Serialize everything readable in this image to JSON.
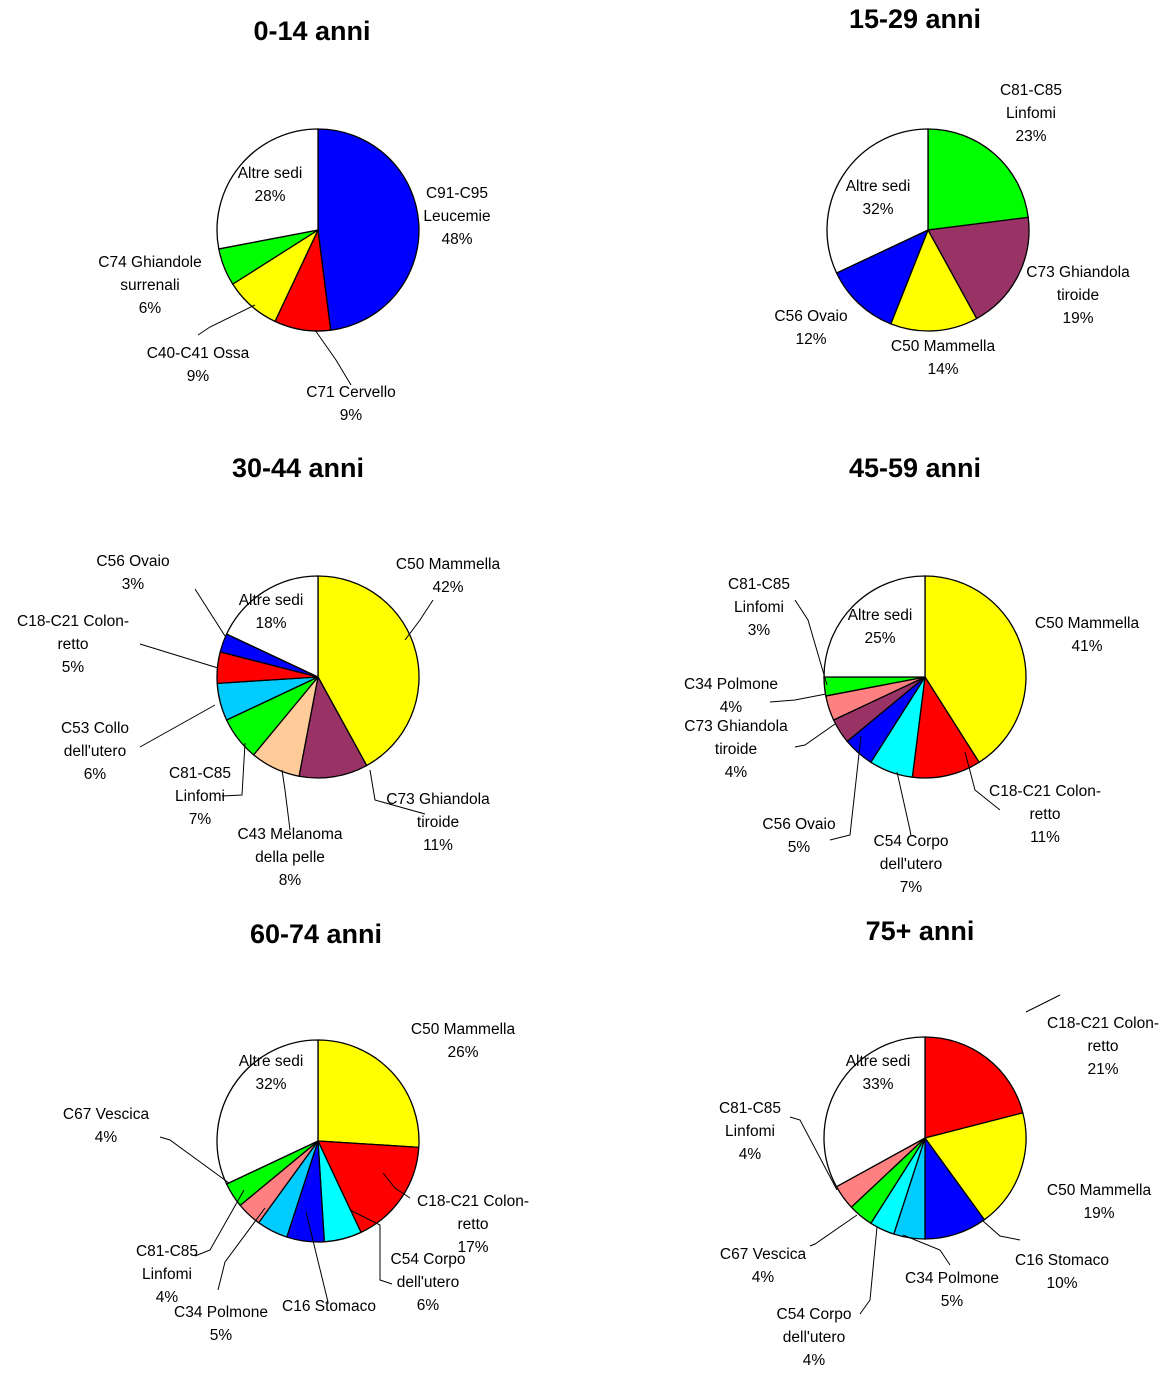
{
  "chart_data": [
    {
      "type": "pie",
      "title": "0-14 anni",
      "slices": [
        {
          "label": [
            "C91-C95",
            "Leucemie"
          ],
          "value": 48,
          "pct": "48%",
          "color": "#0000ff"
        },
        {
          "label": [
            "C71 Cervello"
          ],
          "value": 9,
          "pct": "9%",
          "color": "#ff0000"
        },
        {
          "label": [
            "C40-C41 Ossa"
          ],
          "value": 9,
          "pct": "9%",
          "color": "#ffff00"
        },
        {
          "label": [
            "C74  Ghiandole",
            "surrenali"
          ],
          "value": 6,
          "pct": "6%",
          "color": "#00ff00"
        },
        {
          "label": [
            "Altre sedi"
          ],
          "value": 28,
          "pct": "28%",
          "color": "#ffffff"
        }
      ]
    },
    {
      "type": "pie",
      "title": "15-29 anni",
      "slices": [
        {
          "label": [
            "C81-C85",
            "Linfomi"
          ],
          "value": 23,
          "pct": "23%",
          "color": "#00ff00"
        },
        {
          "label": [
            "C73 Ghiandola",
            "tiroide"
          ],
          "value": 19,
          "pct": "19%",
          "color": "#993366"
        },
        {
          "label": [
            "C50 Mammella"
          ],
          "value": 14,
          "pct": "14%",
          "color": "#ffff00"
        },
        {
          "label": [
            "C56 Ovaio"
          ],
          "value": 12,
          "pct": "12%",
          "color": "#0000ff"
        },
        {
          "label": [
            "Altre sedi"
          ],
          "value": 32,
          "pct": "32%",
          "color": "#ffffff"
        }
      ]
    },
    {
      "type": "pie",
      "title": "30-44 anni",
      "slices": [
        {
          "label": [
            "C50 Mammella"
          ],
          "value": 42,
          "pct": "42%",
          "color": "#ffff00"
        },
        {
          "label": [
            "C73 Ghiandola",
            "tiroide"
          ],
          "value": 11,
          "pct": "11%",
          "color": "#993366"
        },
        {
          "label": [
            "C43 Melanoma",
            "della pelle"
          ],
          "value": 8,
          "pct": "8%",
          "color": "#ffcc99"
        },
        {
          "label": [
            "C81-C85",
            "Linfomi"
          ],
          "value": 7,
          "pct": "7%",
          "color": "#00ff00"
        },
        {
          "label": [
            "C53 Collo",
            "dell'utero"
          ],
          "value": 6,
          "pct": "6%",
          "color": "#00ccff"
        },
        {
          "label": [
            "C18-C21 Colon-",
            "retto"
          ],
          "value": 5,
          "pct": "5%",
          "color": "#ff0000"
        },
        {
          "label": [
            "C56 Ovaio"
          ],
          "value": 3,
          "pct": "3%",
          "color": "#0000ff"
        },
        {
          "label": [
            "Altre sedi"
          ],
          "value": 18,
          "pct": "18%",
          "color": "#ffffff"
        }
      ]
    },
    {
      "type": "pie",
      "title": "45-59 anni",
      "slices": [
        {
          "label": [
            "C50 Mammella"
          ],
          "value": 41,
          "pct": "41%",
          "color": "#ffff00"
        },
        {
          "label": [
            "C18-C21 Colon-",
            "retto"
          ],
          "value": 11,
          "pct": "11%",
          "color": "#ff0000"
        },
        {
          "label": [
            "C54 Corpo",
            "dell'utero"
          ],
          "value": 7,
          "pct": "7%",
          "color": "#00ffff"
        },
        {
          "label": [
            "C56 Ovaio"
          ],
          "value": 5,
          "pct": "5%",
          "color": "#0000ff"
        },
        {
          "label": [
            "C73 Ghiandola",
            "tiroide"
          ],
          "value": 4,
          "pct": "4%",
          "color": "#993366"
        },
        {
          "label": [
            "C34 Polmone"
          ],
          "value": 4,
          "pct": "4%",
          "color": "#ff8080"
        },
        {
          "label": [
            "C81-C85",
            "Linfomi"
          ],
          "value": 3,
          "pct": "3%",
          "color": "#00ff00"
        },
        {
          "label": [
            "Altre sedi"
          ],
          "value": 25,
          "pct": "25%",
          "color": "#ffffff"
        }
      ]
    },
    {
      "type": "pie",
      "title": "60-74 anni",
      "slices": [
        {
          "label": [
            "C50 Mammella"
          ],
          "value": 26,
          "pct": "26%",
          "color": "#ffff00"
        },
        {
          "label": [
            "C18-C21 Colon-",
            "retto"
          ],
          "value": 17,
          "pct": "17%",
          "color": "#ff0000"
        },
        {
          "label": [
            "C54 Corpo",
            "dell'utero"
          ],
          "value": 6,
          "pct": "6%",
          "color": "#00ffff"
        },
        {
          "label": [
            "C16 Stomaco"
          ],
          "value": 6,
          "pct": "",
          "color": "#0000ff"
        },
        {
          "label": [
            "C34 Polmone"
          ],
          "value": 5,
          "pct": "5%",
          "color": "#00ccff"
        },
        {
          "label": [
            "C81-C85",
            "Linfomi"
          ],
          "value": 4,
          "pct": "4%",
          "color": "#ff8080"
        },
        {
          "label": [
            "C67 Vescica"
          ],
          "value": 4,
          "pct": "4%",
          "color": "#00ff00"
        },
        {
          "label": [
            "Altre sedi"
          ],
          "value": 32,
          "pct": "32%",
          "color": "#ffffff"
        }
      ]
    },
    {
      "type": "pie",
      "title": "75+  anni",
      "slices": [
        {
          "label": [
            "C18-C21 Colon-",
            "retto"
          ],
          "value": 21,
          "pct": "21%",
          "color": "#ff0000"
        },
        {
          "label": [
            "C50 Mammella"
          ],
          "value": 19,
          "pct": "19%",
          "color": "#ffff00"
        },
        {
          "label": [
            "C16 Stomaco"
          ],
          "value": 10,
          "pct": "10%",
          "color": "#0000ff"
        },
        {
          "label": [
            "C34 Polmone"
          ],
          "value": 5,
          "pct": "5%",
          "color": "#00ccff"
        },
        {
          "label": [
            "C54 Corpo",
            "dell'utero"
          ],
          "value": 4,
          "pct": "4%",
          "color": "#00ffff"
        },
        {
          "label": [
            "C67 Vescica"
          ],
          "value": 4,
          "pct": "4%",
          "color": "#00ff00"
        },
        {
          "label": [
            "C81-C85",
            "Linfomi"
          ],
          "value": 4,
          "pct": "4%",
          "color": "#ff8080"
        },
        {
          "label": [
            "Altre sedi"
          ],
          "value": 33,
          "pct": "33%",
          "color": "#ffffff"
        }
      ]
    }
  ]
}
